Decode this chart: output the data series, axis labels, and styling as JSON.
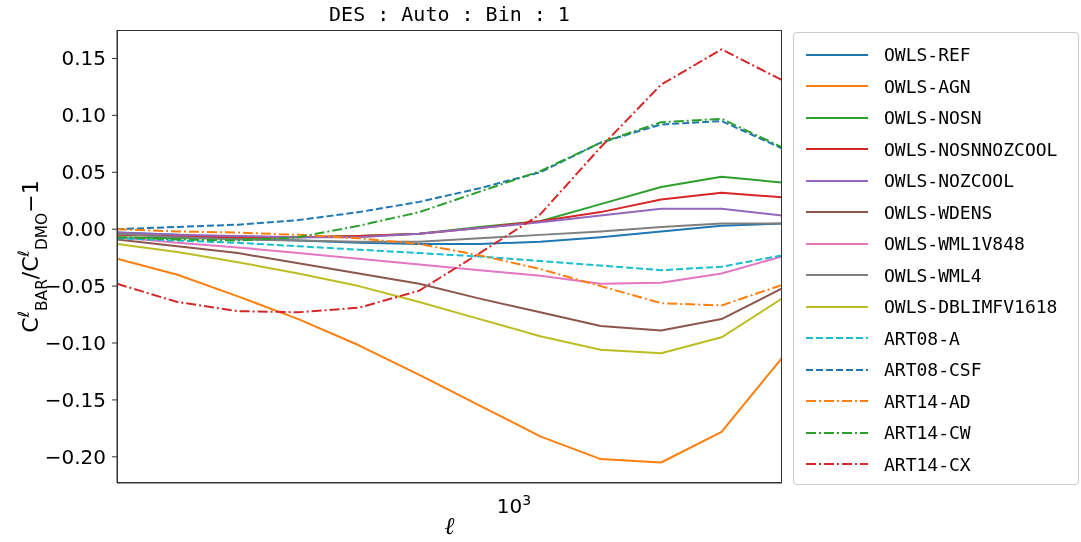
{
  "chart_data": {
    "type": "line",
    "title": "DES : Auto : Bin : 1",
    "xlabel": "ℓ",
    "ylabel": "C$^{ℓ}$$_{BAR}$/C$^{ℓ}$$_{DMO}$−1",
    "categories": [
      null,
      null,
      null,
      null,
      null,
      null,
      null,
      null,
      null,
      null,
      null,
      null
    ],
    "annotations": [
      "10$^{3}$"
    ],
    "ylim": [
      -0.223,
      0.175
    ],
    "yticks": [
      {
        "value": -0.2,
        "label": "−0.20"
      },
      {
        "value": -0.15,
        "label": "−0.15"
      },
      {
        "value": -0.1,
        "label": "−0.10"
      },
      {
        "value": -0.05,
        "label": "−0.05"
      },
      {
        "value": 0,
        "label": "0.00"
      },
      {
        "value": 0.05,
        "label": "0.05"
      },
      {
        "value": 0.1,
        "label": "0.10"
      },
      {
        "value": 0.15,
        "label": "0.15"
      }
    ],
    "grid": false,
    "legend": "right",
    "marker": "none",
    "series": [
      {
        "name": "OWLS-REF",
        "color": "#1f77b4",
        "line_style": "solid",
        "values": [
          -0.003,
          -0.005,
          -0.008,
          -0.01,
          -0.012,
          -0.013,
          -0.013,
          -0.011,
          -0.007,
          -0.002,
          0.003,
          0.005
        ]
      },
      {
        "name": "OWLS-AGN",
        "color": "#ff7f0e",
        "line_style": "solid",
        "values": [
          -0.026,
          -0.04,
          -0.059,
          -0.079,
          -0.102,
          -0.128,
          -0.155,
          -0.182,
          -0.202,
          -0.205,
          -0.178,
          -0.113
        ]
      },
      {
        "name": "OWLS-NOSN",
        "color": "#2ca02c",
        "line_style": "solid",
        "values": [
          -0.007,
          -0.008,
          -0.008,
          -0.007,
          -0.006,
          -0.004,
          0.002,
          0.007,
          0.022,
          0.037,
          0.046,
          0.041
        ]
      },
      {
        "name": "OWLS-NOSNNOZCOOL",
        "color": "#d62728",
        "line_style": "solid",
        "values": [
          -0.005,
          -0.006,
          -0.007,
          -0.007,
          -0.006,
          -0.004,
          0.001,
          0.007,
          0.015,
          0.026,
          0.032,
          0.028
        ]
      },
      {
        "name": "OWLS-NOZCOOL",
        "color": "#9467bd",
        "line_style": "solid",
        "values": [
          -0.003,
          -0.005,
          -0.006,
          -0.007,
          -0.007,
          -0.004,
          0.001,
          0.006,
          0.012,
          0.018,
          0.018,
          0.012
        ]
      },
      {
        "name": "OWLS-WDENS",
        "color": "#8c564b",
        "line_style": "solid",
        "values": [
          -0.009,
          -0.015,
          -0.021,
          -0.03,
          -0.039,
          -0.048,
          -0.061,
          -0.073,
          -0.085,
          -0.089,
          -0.079,
          -0.052
        ]
      },
      {
        "name": "OWLS-WML1V848",
        "color": "#e377c2",
        "line_style": "solid",
        "values": [
          -0.007,
          -0.012,
          -0.016,
          -0.021,
          -0.026,
          -0.031,
          -0.036,
          -0.041,
          -0.048,
          -0.047,
          -0.039,
          -0.024
        ]
      },
      {
        "name": "OWLS-WML4",
        "color": "#7f7f7f",
        "line_style": "solid",
        "values": [
          -0.004,
          -0.007,
          -0.009,
          -0.01,
          -0.011,
          -0.011,
          -0.008,
          -0.005,
          -0.002,
          0.002,
          0.005,
          0.005
        ]
      },
      {
        "name": "OWLS-DBLIMFV1618",
        "color": "#bcbd22",
        "line_style": "solid",
        "values": [
          -0.013,
          -0.02,
          -0.029,
          -0.039,
          -0.05,
          -0.064,
          -0.079,
          -0.094,
          -0.106,
          -0.109,
          -0.095,
          -0.061
        ]
      },
      {
        "name": "ART08-A",
        "color": "#17becf",
        "line_style": "dashed",
        "values": [
          -0.008,
          -0.01,
          -0.012,
          -0.015,
          -0.018,
          -0.021,
          -0.024,
          -0.028,
          -0.032,
          -0.036,
          -0.033,
          -0.023
        ]
      },
      {
        "name": "ART08-CSF",
        "color": "#1f77b4",
        "line_style": "dashed",
        "values": [
          0,
          0.002,
          0.004,
          0.008,
          0.015,
          0.024,
          0.036,
          0.05,
          0.076,
          0.092,
          0.095,
          0.071
        ]
      },
      {
        "name": "ART14-AD",
        "color": "#ff7f0e",
        "line_style": "dashdot",
        "values": [
          0,
          -0.002,
          -0.003,
          -0.005,
          -0.008,
          -0.013,
          -0.023,
          -0.035,
          -0.05,
          -0.065,
          -0.067,
          -0.049
        ]
      },
      {
        "name": "ART14-CW",
        "color": "#2ca02c",
        "line_style": "dashdot",
        "values": [
          -0.007,
          -0.009,
          -0.01,
          -0.007,
          0.003,
          0.015,
          0.033,
          0.051,
          0.076,
          0.094,
          0.097,
          0.072
        ]
      },
      {
        "name": "ART14-CX",
        "color": "#d62728",
        "line_style": "dashdot",
        "values": [
          -0.048,
          -0.064,
          -0.072,
          -0.073,
          -0.069,
          -0.054,
          -0.021,
          0.013,
          0.072,
          0.127,
          0.158,
          0.131
        ]
      }
    ]
  }
}
